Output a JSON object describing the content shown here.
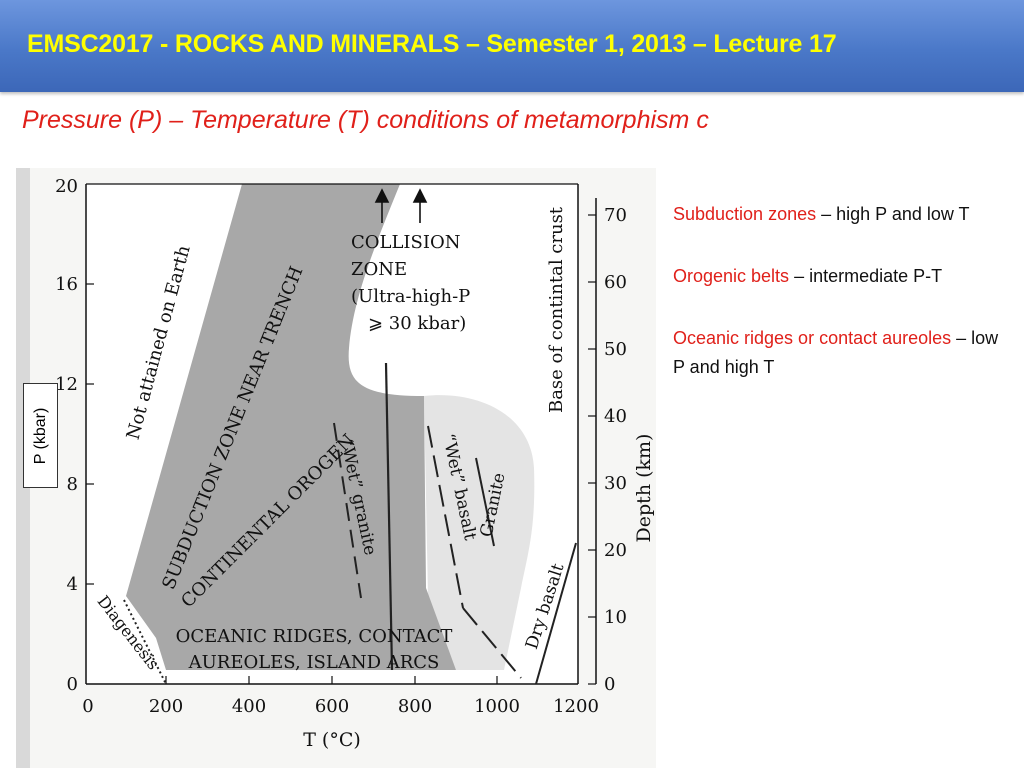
{
  "header": {
    "title": "EMSC2017 - ROCKS AND MINERALS – Semester 1, 2013 – Lecture 17"
  },
  "subtitle": "Pressure (P) – Temperature (T) conditions of metamorphism c",
  "figure": {
    "y_label_box": "P (kbar)",
    "x_axis_label": "T (°C)",
    "right_axis_label": "Depth (km)",
    "x_ticks": [
      "0",
      "200",
      "400",
      "600",
      "800",
      "1000",
      "1200"
    ],
    "y_ticks": [
      "0",
      "4",
      "8",
      "12",
      "16",
      "20"
    ],
    "depth_ticks": [
      "0",
      "10",
      "20",
      "30",
      "40",
      "50",
      "60",
      "70"
    ],
    "labels": {
      "collision": [
        "COLLISION",
        "ZONE",
        "(Ultra-high-P",
        "⩾ 30 kbar)"
      ],
      "not_attained": "Not attained on Earth",
      "subduction": "SUBDUCTION ZONE NEAR TRENCH",
      "continental": "CONTINENTAL OROGEN",
      "wet_granite": "“Wet” granite",
      "wet_basalt": "“Wet” basalt",
      "granite": "Granite",
      "dry_basalt": "Dry basalt",
      "diagenesis": "Diagenesis",
      "oceanic": [
        "OCEANIC RIDGES, CONTACT",
        "AUREOLES, ISLAND ARCS"
      ],
      "base_crust": "Base of contintal crust"
    }
  },
  "bullets": [
    {
      "red": "Subduction zones",
      "rest": " – high P and low T"
    },
    {
      "red": "Orogenic belts",
      "rest": " – intermediate P-T"
    },
    {
      "red": "Oceanic ridges or contact aureoles",
      "rest": " – low P and high T"
    }
  ],
  "colors": {
    "header": "#4a78c8",
    "title_yellow": "#ffff00",
    "accent_red": "#e0201a",
    "shade_dark": "#a8a8a8",
    "shade_light": "#e4e4e4"
  }
}
